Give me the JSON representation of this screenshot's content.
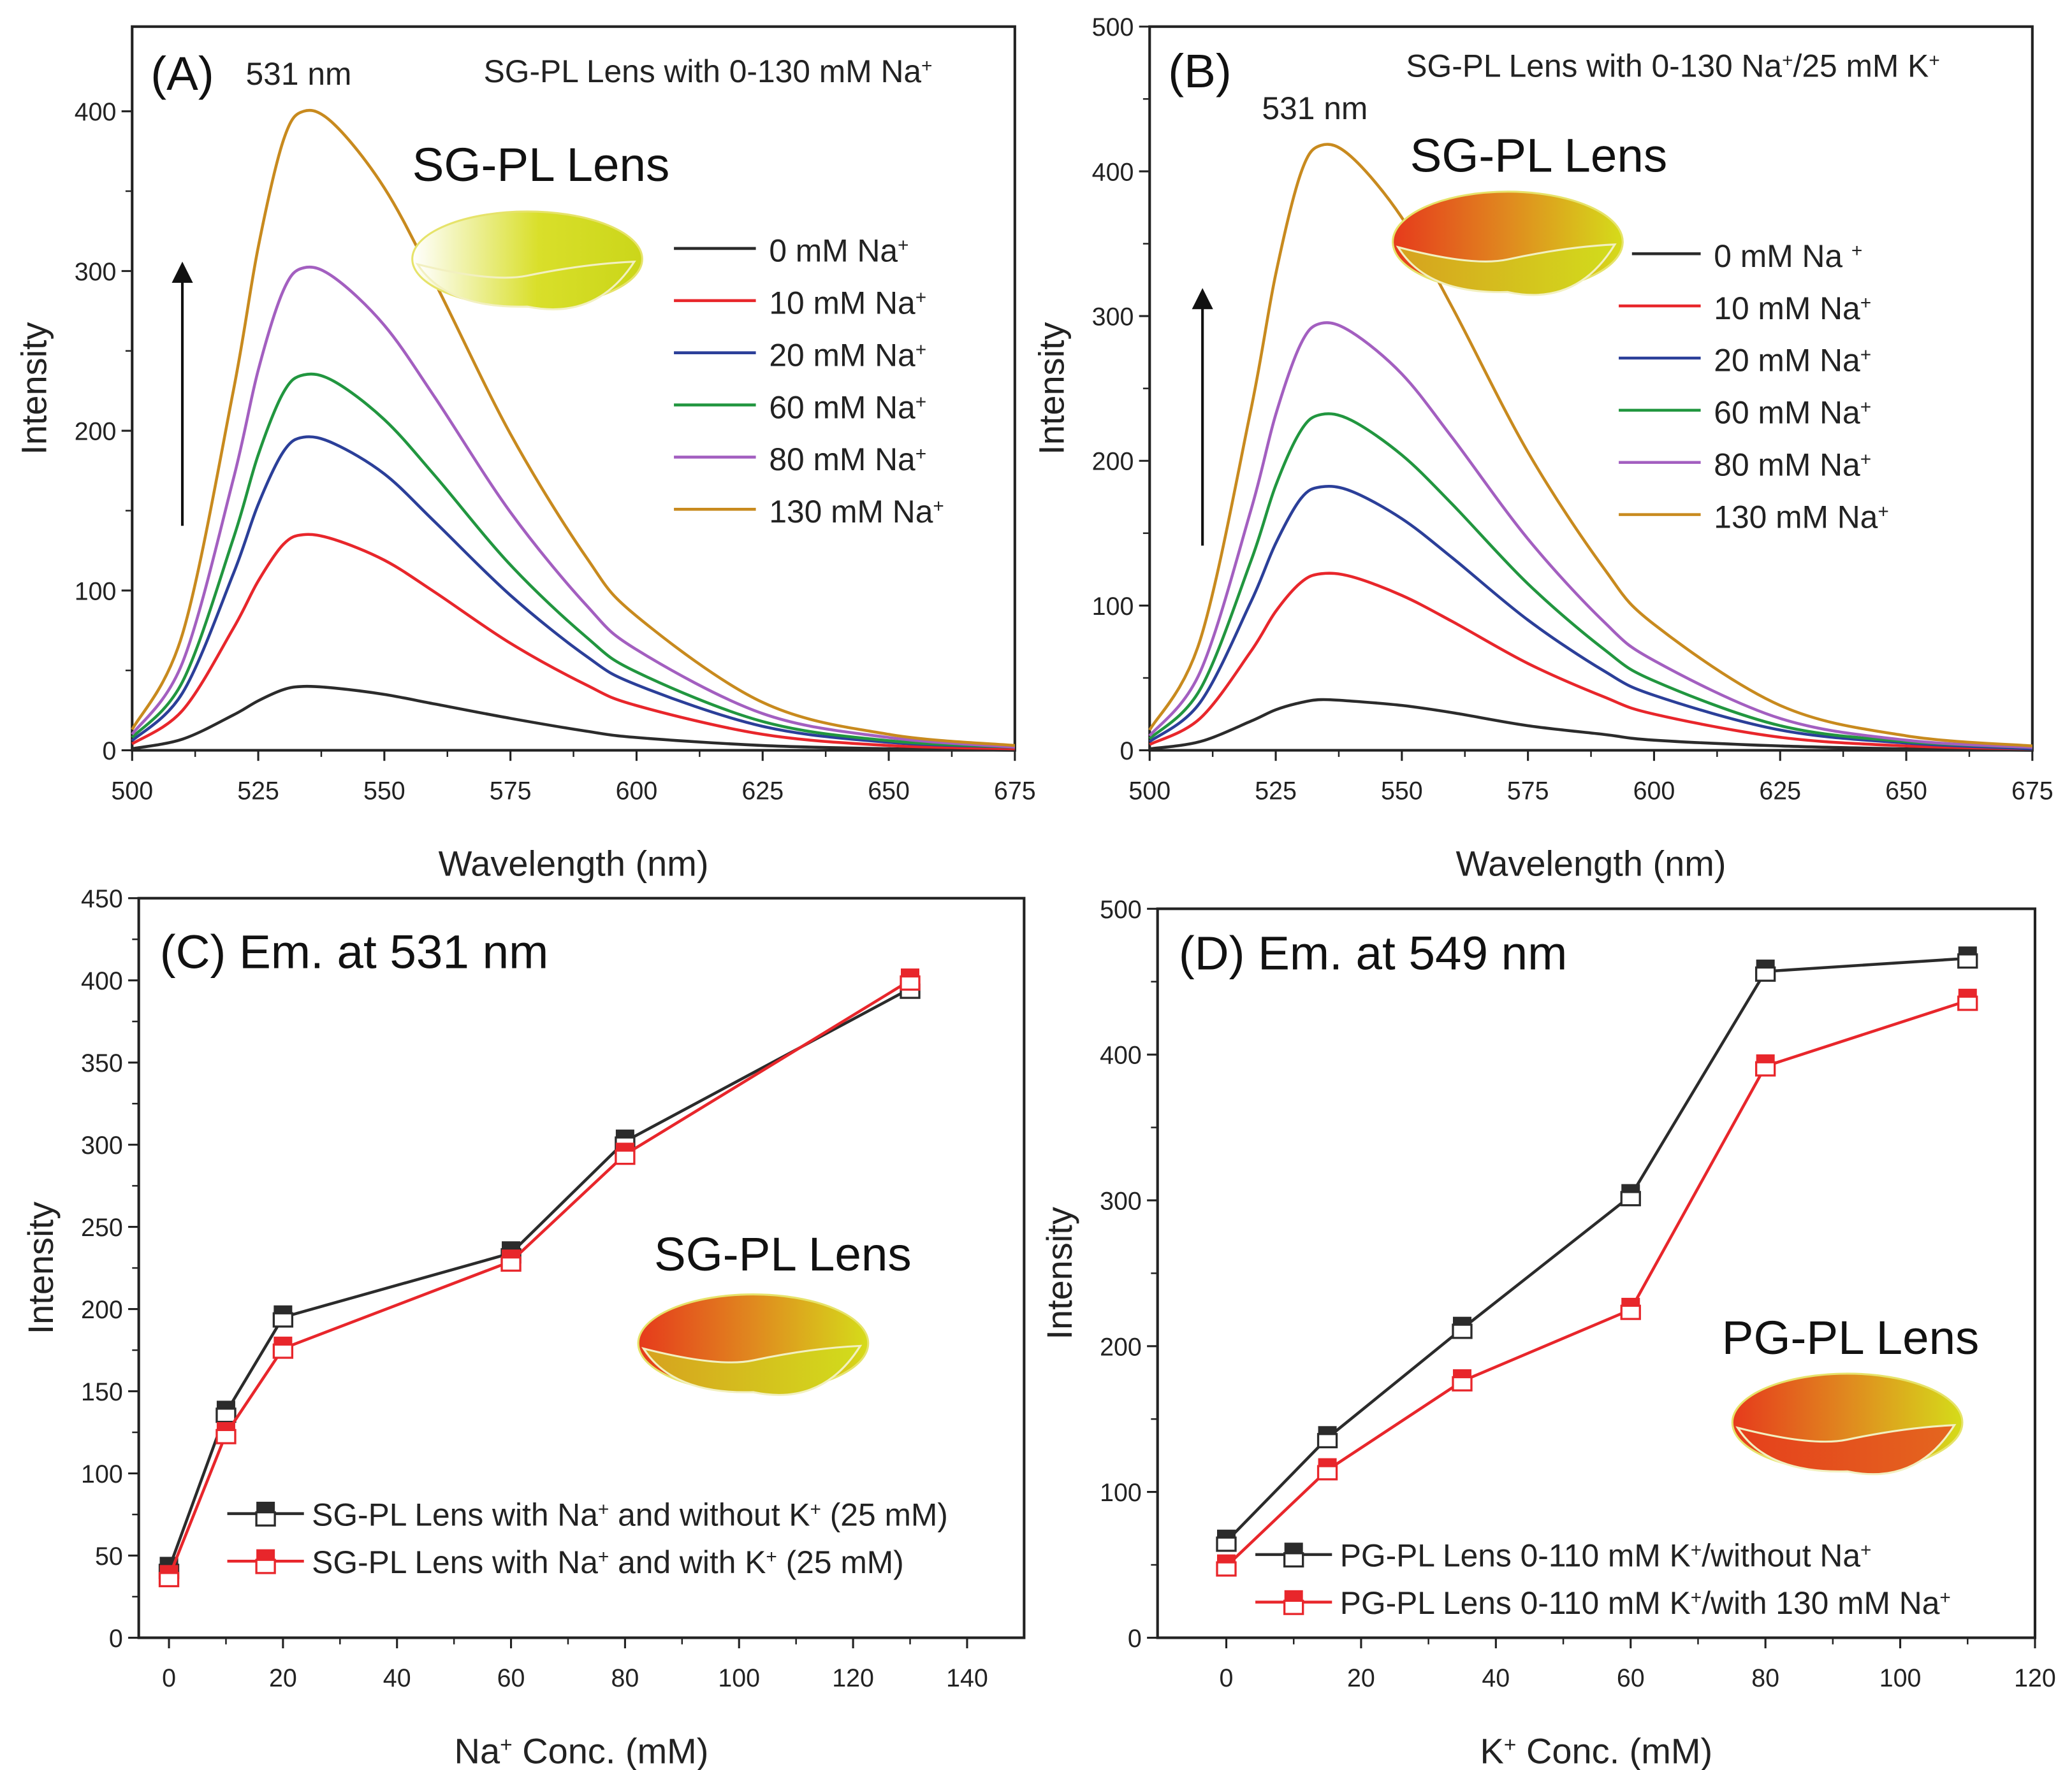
{
  "colors": {
    "black": "#2b2b2b",
    "red": "#e8262b",
    "blue": "#2b3f99",
    "green": "#21963f",
    "purple": "#a35fc0",
    "orange": "#c88a1e"
  },
  "chart_data": [
    {
      "type": "line",
      "panel_label": "(A)",
      "peak_label": "531 nm",
      "note": "SG-PL Lens with 0-130 mM Na",
      "note_sup": "+",
      "lens_label": "SG-PL Lens",
      "xlabel": "Wavelength (nm)",
      "ylabel": "Intensity",
      "xlim": [
        500,
        675
      ],
      "ylim": [
        0,
        450
      ],
      "xticks": [
        500,
        525,
        550,
        575,
        600,
        625,
        650,
        675
      ],
      "yticks": [
        0,
        100,
        200,
        300,
        400
      ],
      "legend_placement": "right",
      "x": [
        500,
        510,
        520,
        525,
        530,
        534,
        540,
        550,
        560,
        575,
        590,
        600,
        625,
        650,
        675
      ],
      "series": [
        {
          "name": "0 mM Na",
          "sup": "+",
          "color": "#2b2b2b",
          "values": [
            1,
            7,
            22,
            31,
            38,
            40,
            39,
            35,
            29,
            20,
            12,
            8,
            3,
            1,
            0
          ]
        },
        {
          "name": "10 mM Na",
          "sup": "+",
          "color": "#e8262b",
          "values": [
            4,
            25,
            76,
            106,
            129,
            135,
            132,
            119,
            99,
            67,
            41,
            28,
            10,
            3,
            1
          ]
        },
        {
          "name": "20 mM Na",
          "sup": "+",
          "color": "#2b3f99",
          "values": [
            6,
            36,
            110,
            154,
            187,
            196,
            192,
            173,
            143,
            97,
            59,
            41,
            15,
            5,
            2
          ]
        },
        {
          "name": "60 mM Na",
          "sup": "+",
          "color": "#21963f",
          "values": [
            8,
            43,
            132,
            185,
            224,
            235,
            231,
            207,
            172,
            116,
            71,
            49,
            18,
            6,
            2
          ]
        },
        {
          "name": "80 mM Na",
          "sup": "+",
          "color": "#a35fc0",
          "values": [
            10,
            55,
            169,
            238,
            288,
            302,
            296,
            266,
            221,
            149,
            91,
            63,
            23,
            8,
            2
          ]
        },
        {
          "name": "130 mM Na",
          "sup": "+",
          "color": "#c88a1e",
          "values": [
            13,
            73,
            224,
            315,
            382,
            400,
            392,
            352,
            293,
            198,
            121,
            84,
            30,
            10,
            3
          ]
        }
      ]
    },
    {
      "type": "line",
      "panel_label": "(B)",
      "peak_label": "531 nm",
      "note": "SG-PL Lens with 0-130 Na",
      "note_mid": "/25 mM K",
      "note_sup": "+",
      "lens_label": "SG-PL Lens",
      "xlabel": "Wavelength (nm)",
      "ylabel": "Intensity",
      "xlim": [
        500,
        675
      ],
      "ylim": [
        0,
        500
      ],
      "xticks": [
        500,
        525,
        550,
        575,
        600,
        625,
        650,
        675
      ],
      "yticks": [
        0,
        100,
        200,
        300,
        400,
        500
      ],
      "legend_placement": "right",
      "x": [
        500,
        510,
        520,
        525,
        530,
        534,
        540,
        550,
        560,
        575,
        590,
        600,
        625,
        650,
        675
      ],
      "series": [
        {
          "name": "0 mM Na ",
          "sup": "+",
          "color": "#2b2b2b",
          "values": [
            1,
            6,
            20,
            28,
            33,
            35,
            34,
            31,
            26,
            17,
            11,
            7,
            3,
            1,
            0
          ]
        },
        {
          "name": "10 mM Na",
          "sup": "+",
          "color": "#e8262b",
          "values": [
            4,
            22,
            68,
            96,
            116,
            122,
            120,
            107,
            89,
            60,
            37,
            25,
            9,
            3,
            1
          ]
        },
        {
          "name": "20 mM Na",
          "sup": "+",
          "color": "#2b3f99",
          "values": [
            6,
            33,
            102,
            143,
            174,
            182,
            179,
            160,
            133,
            90,
            55,
            38,
            14,
            5,
            1
          ]
        },
        {
          "name": "60 mM Na",
          "sup": "+",
          "color": "#21963f",
          "values": [
            8,
            42,
            130,
            183,
            221,
            232,
            228,
            204,
            170,
            115,
            70,
            48,
            17,
            6,
            2
          ]
        },
        {
          "name": "80 mM Na",
          "sup": "+",
          "color": "#a35fc0",
          "values": [
            10,
            54,
            165,
            232,
            281,
            295,
            289,
            260,
            216,
            146,
            89,
            62,
            22,
            7,
            2
          ]
        },
        {
          "name": "130 mM Na",
          "sup": "+",
          "color": "#c88a1e",
          "values": [
            14,
            76,
            234,
            329,
            399,
            418,
            410,
            368,
            306,
            206,
            126,
            87,
            31,
            10,
            3
          ]
        }
      ]
    },
    {
      "type": "line",
      "panel_label": "(C) Em. at 531 nm",
      "lens_label": "SG-PL Lens",
      "xlabel": "Na",
      "xlabel_sup": "+",
      "xlabel_rest": " Conc. (mM)",
      "ylabel": "Intensity",
      "xlim": [
        -5,
        150
      ],
      "ylim": [
        0,
        450
      ],
      "xticks": [
        0,
        20,
        40,
        60,
        80,
        100,
        120,
        140
      ],
      "yticks": [
        0,
        50,
        100,
        150,
        200,
        250,
        300,
        350,
        400,
        450
      ],
      "legend_placement": "bottom",
      "series": [
        {
          "name": "SG-PL Lens with Na",
          "parts": [
            "SG-PL Lens with Na",
            "+",
            " and without K",
            "+",
            " (25 mM)"
          ],
          "color": "#2b2b2b",
          "x": [
            0,
            10,
            20,
            60,
            80,
            130
          ],
          "values": [
            42,
            137,
            195,
            234,
            302,
            395
          ]
        },
        {
          "name": "SG-PL Lens with Na",
          "parts": [
            "SG-PL Lens with Na",
            "+",
            " and with K",
            "+",
            " (25 mM)"
          ],
          "color": "#e8262b",
          "x": [
            0,
            10,
            20,
            60,
            80,
            130
          ],
          "values": [
            37,
            124,
            176,
            229,
            294,
            400
          ]
        }
      ]
    },
    {
      "type": "line",
      "panel_label": "(D)   Em. at 549 nm",
      "lens_label": "PG-PL Lens",
      "xlabel": "K",
      "xlabel_sup": "+",
      "xlabel_rest": " Conc. (mM)",
      "ylabel": "Intensity",
      "xlim": [
        -10,
        120
      ],
      "ylim": [
        0,
        500
      ],
      "xticks": [
        0,
        20,
        40,
        60,
        80,
        100,
        120
      ],
      "yticks": [
        0,
        100,
        200,
        300,
        400,
        500
      ],
      "legend_placement": "bottom",
      "series": [
        {
          "name": "PG-PL Lens 0-110 mM K",
          "parts": [
            "PG-PL Lens 0-110 mM K",
            "+",
            "/without  Na",
            "+",
            ""
          ],
          "color": "#2b2b2b",
          "x": [
            0,
            15,
            35,
            60,
            80,
            110
          ],
          "values": [
            66,
            137,
            212,
            303,
            457,
            466
          ]
        },
        {
          "name": "PG-PL Lens 0-110 mM K",
          "parts": [
            "PG-PL Lens 0-110 mM K",
            "+",
            "/with 130 mM Na",
            "+",
            ""
          ],
          "color": "#e8262b",
          "x": [
            0,
            15,
            35,
            60,
            80,
            110
          ],
          "values": [
            49,
            115,
            176,
            225,
            392,
            437
          ]
        }
      ]
    }
  ]
}
